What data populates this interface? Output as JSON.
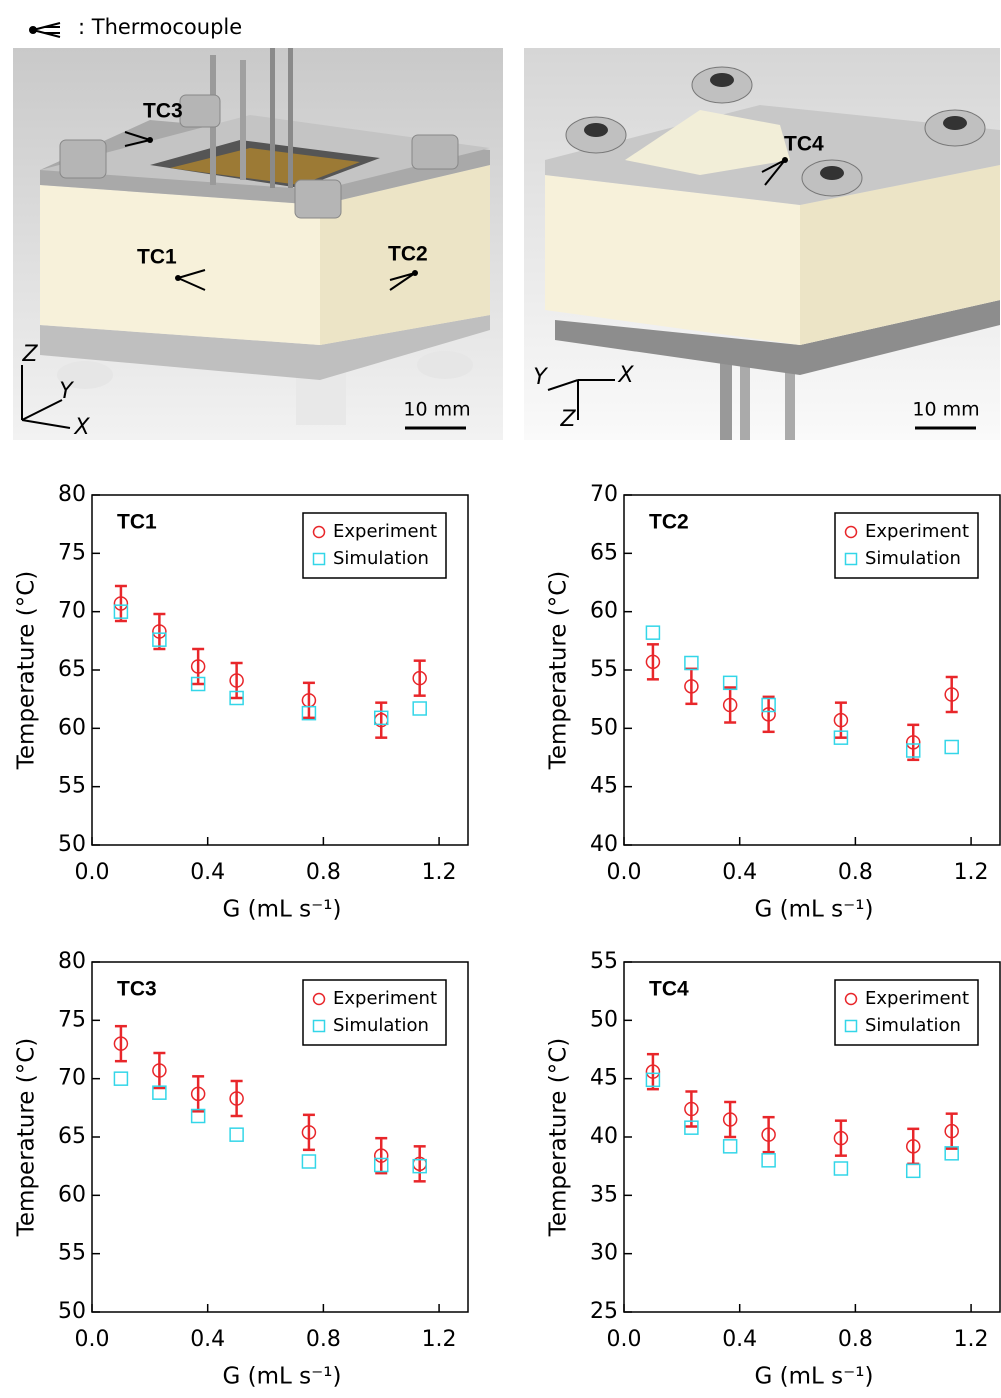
{
  "figure": {
    "legend_text": ": Thermocouple",
    "labels_left": [
      "TC3",
      "TC1",
      "TC2"
    ],
    "labels_right": [
      "TC4"
    ],
    "scale_bars": [
      "10 mm",
      "10 mm"
    ],
    "axes_left": [
      "Z",
      "Y",
      "X"
    ],
    "axes_right": [
      "Y",
      "X",
      "Z"
    ]
  },
  "chart_data": [
    {
      "type": "scatter",
      "label": "TC1",
      "xlabel": "G (mL s⁻¹)",
      "ylabel": "Temperature (°C)",
      "xlim": [
        0,
        1.3
      ],
      "ylim": [
        50,
        80
      ],
      "xticks": [
        {
          "value": 0,
          "label": "0.0"
        },
        0.4,
        0.8,
        1.2
      ],
      "yticks": [
        50,
        55,
        60,
        65,
        70,
        75,
        80
      ],
      "legend": "upper right",
      "x": [
        0.1,
        0.233,
        0.367,
        0.5,
        0.75,
        1.0,
        1.133
      ],
      "series": [
        {
          "name": "Experiment",
          "color": "#e8262a",
          "marker": "circle",
          "values": [
            70.7,
            68.3,
            65.3,
            64.1,
            62.4,
            60.7,
            64.3
          ],
          "errors": [
            1.5,
            1.5,
            1.5,
            1.5,
            1.5,
            1.5,
            1.5
          ]
        },
        {
          "name": "Simulation",
          "color": "#33d6e8",
          "marker": "square",
          "values": [
            70.0,
            67.6,
            63.8,
            62.6,
            61.3,
            60.9,
            61.7
          ]
        }
      ]
    },
    {
      "type": "scatter",
      "label": "TC2",
      "xlabel": "G (mL s⁻¹)",
      "ylabel": "Temperature (°C)",
      "xlim": [
        0,
        1.3
      ],
      "ylim": [
        40,
        70
      ],
      "xticks": [
        {
          "value": 0,
          "label": "0.0"
        },
        0.4,
        0.8,
        1.2
      ],
      "yticks": [
        40,
        45,
        50,
        55,
        60,
        65,
        70
      ],
      "legend": "upper right",
      "x": [
        0.1,
        0.233,
        0.367,
        0.5,
        0.75,
        1.0,
        1.133
      ],
      "series": [
        {
          "name": "Experiment",
          "color": "#e8262a",
          "marker": "circle",
          "values": [
            55.7,
            53.6,
            52.0,
            51.2,
            50.7,
            48.8,
            52.9
          ],
          "errors": [
            1.5,
            1.5,
            1.5,
            1.5,
            1.5,
            1.5,
            1.5
          ]
        },
        {
          "name": "Simulation",
          "color": "#33d6e8",
          "marker": "square",
          "values": [
            58.2,
            55.6,
            53.9,
            52.0,
            49.2,
            48.1,
            48.4
          ]
        }
      ]
    },
    {
      "type": "scatter",
      "label": "TC3",
      "xlabel": "G (mL s⁻¹)",
      "ylabel": "Temperature (°C)",
      "xlim": [
        0,
        1.3
      ],
      "ylim": [
        50,
        80
      ],
      "xticks": [
        {
          "value": 0,
          "label": "0.0"
        },
        0.4,
        0.8,
        1.2
      ],
      "yticks": [
        50,
        55,
        60,
        65,
        70,
        75,
        80
      ],
      "legend": "upper right",
      "x": [
        0.1,
        0.233,
        0.367,
        0.5,
        0.75,
        1.0,
        1.133
      ],
      "series": [
        {
          "name": "Experiment",
          "color": "#e8262a",
          "marker": "circle",
          "values": [
            73.0,
            70.7,
            68.7,
            68.3,
            65.4,
            63.4,
            62.7
          ],
          "errors": [
            1.5,
            1.5,
            1.5,
            1.5,
            1.5,
            1.5,
            1.5
          ]
        },
        {
          "name": "Simulation",
          "color": "#33d6e8",
          "marker": "square",
          "values": [
            70.0,
            68.8,
            66.8,
            65.2,
            62.9,
            62.6,
            62.5
          ]
        }
      ]
    },
    {
      "type": "scatter",
      "label": "TC4",
      "xlabel": "G (mL s⁻¹)",
      "ylabel": "Temperature (°C)",
      "xlim": [
        0,
        1.3
      ],
      "ylim": [
        25,
        55
      ],
      "xticks": [
        {
          "value": 0,
          "label": "0.0"
        },
        0.4,
        0.8,
        1.2
      ],
      "yticks": [
        25,
        30,
        35,
        40,
        45,
        50,
        55
      ],
      "legend": "upper right",
      "x": [
        0.1,
        0.233,
        0.367,
        0.5,
        0.75,
        1.0,
        1.133
      ],
      "series": [
        {
          "name": "Experiment",
          "color": "#e8262a",
          "marker": "circle",
          "values": [
            45.6,
            42.4,
            41.5,
            40.2,
            39.9,
            39.2,
            40.5
          ],
          "errors": [
            1.5,
            1.5,
            1.5,
            1.5,
            1.5,
            1.5,
            1.5
          ]
        },
        {
          "name": "Simulation",
          "color": "#33d6e8",
          "marker": "square",
          "values": [
            44.9,
            40.8,
            39.2,
            38.0,
            37.3,
            37.1,
            38.6
          ]
        }
      ]
    }
  ]
}
